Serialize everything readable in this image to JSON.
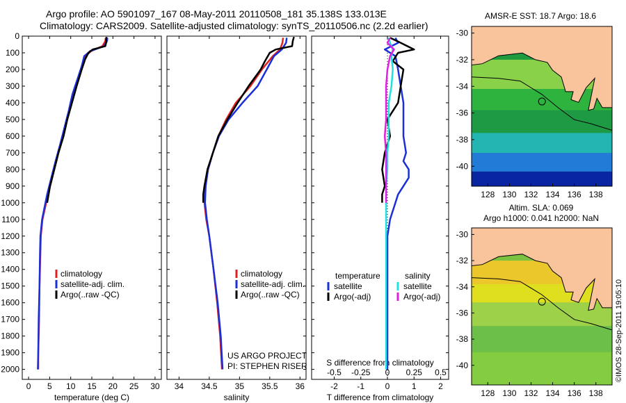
{
  "title": {
    "line1": "Argo profile: AO 5901097_167 08-May-2011 20110508_181 35.138S 133.013E",
    "line2": "Climatology: CARS2009. Satellite-adjusted climatology: synTS_20110506.nc (2.2d earlier)"
  },
  "credit": "©IMOS 28-Sep-2011 19:05:10",
  "project": {
    "line1": "US ARGO PROJECT",
    "line2": "PI: STEPHEN RISER"
  },
  "colors": {
    "climatology": "#e02020",
    "satellite": "#1a2fd8",
    "argo": "#000000",
    "sal_sat": "#20e0e0",
    "sal_argo": "#e020e0",
    "land": "#f9c49b",
    "coast": "#000000"
  },
  "chart_data": [
    {
      "type": "line",
      "id": "temperature",
      "xlabel": "temperature (deg C)",
      "xticks": [
        0,
        5,
        10,
        15,
        20,
        25,
        30
      ],
      "xlim": [
        -1.5,
        31.5
      ],
      "ylim": [
        0,
        2060
      ],
      "yticks": [
        0,
        100,
        200,
        300,
        400,
        500,
        600,
        700,
        800,
        900,
        1000,
        1100,
        1200,
        1300,
        1400,
        1500,
        1600,
        1700,
        1800,
        1900,
        2000
      ],
      "legend": [
        "climatology",
        "satellite-adj. clim.",
        "Argo(..raw -QC)"
      ],
      "series": [
        {
          "name": "climatology",
          "color": "climatology",
          "depth": [
            10,
            30,
            60,
            90,
            120,
            180,
            250,
            350,
            450,
            550,
            650,
            750,
            850,
            950,
            1100,
            1200,
            1300,
            1500,
            1700,
            1900,
            2000
          ],
          "values": [
            18.3,
            18.2,
            17.5,
            14.8,
            13.5,
            12.8,
            11.9,
            10.7,
            9.6,
            8.6,
            7.6,
            6.5,
            5.6,
            4.6,
            3.3,
            2.9,
            2.8,
            2.6,
            2.5,
            2.3,
            2.3
          ]
        },
        {
          "name": "satellite-adj. clim.",
          "color": "satellite",
          "depth": [
            10,
            30,
            60,
            90,
            120,
            180,
            250,
            350,
            450,
            550,
            650,
            750,
            850,
            950,
            1100,
            1200,
            1300,
            1500,
            1700,
            1900,
            2000
          ],
          "values": [
            18.7,
            18.6,
            17.9,
            14.6,
            13.2,
            12.6,
            11.7,
            10.4,
            9.5,
            8.5,
            7.5,
            6.4,
            5.4,
            4.4,
            3.2,
            2.8,
            2.7,
            2.6,
            2.4,
            2.3,
            2.2
          ]
        },
        {
          "name": "Argo(..raw -QC)",
          "color": "argo",
          "depth": [
            5,
            20,
            40,
            60,
            80,
            100,
            140,
            200,
            300,
            400,
            500,
            600,
            700,
            800,
            900,
            1000
          ],
          "values": [
            18.5,
            18.4,
            18.4,
            18.2,
            15.2,
            14.2,
            13.4,
            12.6,
            11.4,
            10.3,
            9.2,
            8.3,
            7.1,
            6.1,
            5.1,
            4.4
          ]
        }
      ]
    },
    {
      "type": "line",
      "id": "salinity",
      "xlabel": "salinity",
      "xticks": [
        34,
        34.5,
        35,
        35.5,
        36
      ],
      "xlim": [
        33.8,
        36.1
      ],
      "ylim": [
        0,
        2060
      ],
      "legend": [
        "climatology",
        "satellite-adj. clim.",
        "Argo(..raw -QC)"
      ],
      "series": [
        {
          "name": "climatology",
          "color": "climatology",
          "depth": [
            10,
            40,
            80,
            120,
            200,
            300,
            400,
            500,
            600,
            700,
            800,
            900,
            1000,
            1100,
            1200,
            1400,
            1600,
            1800,
            2000
          ],
          "values": [
            35.72,
            35.71,
            35.67,
            35.55,
            35.37,
            35.18,
            34.94,
            34.78,
            34.65,
            34.56,
            34.48,
            34.43,
            34.42,
            34.45,
            34.5,
            34.57,
            34.63,
            34.68,
            34.71
          ]
        },
        {
          "name": "satellite-adj. clim.",
          "color": "satellite",
          "depth": [
            10,
            40,
            80,
            120,
            200,
            300,
            400,
            500,
            600,
            700,
            800,
            900,
            1000,
            1100,
            1200,
            1400,
            1600,
            1800,
            2000
          ],
          "values": [
            35.78,
            35.77,
            35.7,
            35.57,
            35.45,
            35.3,
            35.05,
            34.82,
            34.66,
            34.56,
            34.48,
            34.44,
            34.43,
            34.46,
            34.5,
            34.57,
            34.64,
            34.69,
            34.72
          ]
        },
        {
          "name": "Argo(..raw -QC)",
          "color": "argo",
          "depth": [
            5,
            30,
            60,
            80,
            100,
            150,
            200,
            300,
            400,
            500,
            600,
            700,
            800,
            900,
            950,
            1000
          ],
          "values": [
            35.9,
            35.88,
            35.87,
            35.6,
            35.5,
            35.42,
            35.35,
            35.15,
            34.97,
            34.8,
            34.65,
            34.56,
            34.47,
            34.42,
            34.4,
            34.4
          ]
        }
      ]
    },
    {
      "type": "line",
      "id": "difference",
      "xlabel": "T difference from climatology",
      "xlabel_top": "S difference from climatology",
      "xticks": [
        -2,
        -1,
        0,
        1,
        2
      ],
      "xticks_top": [
        "-0.5",
        "-0.25",
        "0",
        "0.25",
        "0.5"
      ],
      "xlim": [
        -2.85,
        2.3
      ],
      "ylim": [
        0,
        2060
      ],
      "legend_headers": [
        "temperature",
        "salinity"
      ],
      "legend": [
        "satellite",
        "Argo(-adj)",
        "satellite",
        "Argo(-adj)"
      ],
      "series": [
        {
          "name": "T satellite",
          "color": "satellite",
          "depth": [
            10,
            40,
            80,
            120,
            200,
            300,
            400,
            500,
            600,
            700,
            750,
            800,
            850,
            900,
            950,
            1000,
            1100,
            1200,
            1500,
            2000
          ],
          "values": [
            0.3,
            0.4,
            -0.1,
            0.3,
            0.4,
            0.5,
            0.6,
            0.6,
            0.6,
            0.7,
            0.6,
            0.8,
            0.8,
            0.6,
            0.4,
            0.3,
            0.1,
            0.0,
            0.0,
            0.0
          ]
        },
        {
          "name": "T Argo(-adj)",
          "color": "argo",
          "depth": [
            10,
            40,
            80,
            100,
            150,
            200,
            300,
            400,
            500,
            600,
            700,
            800,
            900,
            950,
            1000
          ],
          "values": [
            0.1,
            0.5,
            1.0,
            0.4,
            0.2,
            0.6,
            0.5,
            0.4,
            0.0,
            0.1,
            -0.1,
            -0.2,
            -0.1,
            -0.2,
            -0.2
          ]
        },
        {
          "name": "S satellite",
          "color": "sal_sat",
          "depth": [
            10,
            40,
            80,
            120,
            200,
            300,
            400,
            500,
            600,
            700,
            800,
            900,
            1000,
            1200,
            1500,
            1800,
            2000
          ],
          "values": [
            0.05,
            0.1,
            0.2,
            0.15,
            0.2,
            0.15,
            0.05,
            0.05,
            0.05,
            0.0,
            0.0,
            -0.05,
            -0.05,
            -0.05,
            -0.05,
            -0.05,
            -0.05
          ]
        },
        {
          "name": "S Argo(-adj)",
          "color": "sal_argo",
          "depth": [
            10,
            40,
            80,
            120,
            200,
            300,
            400,
            500,
            600,
            700,
            800,
            900,
            1000
          ],
          "values": [
            0.1,
            0.0,
            0.25,
            0.1,
            0.0,
            -0.05,
            -0.05,
            -0.05,
            -0.1,
            -0.05,
            -0.05,
            -0.05,
            -0.05
          ]
        }
      ]
    },
    {
      "type": "heatmap",
      "id": "sst-map",
      "title": "AMSR-E SST: 18.7 Argo: 18.6",
      "xticks": [
        128,
        130,
        132,
        134,
        136,
        138
      ],
      "yticks": [
        -30,
        -32,
        -34,
        -36,
        -38,
        -40
      ],
      "xlim": [
        126.5,
        139.5
      ],
      "ylim": [
        -41.5,
        -29.5
      ],
      "argo_position": [
        133.013,
        -35.138
      ]
    },
    {
      "type": "heatmap",
      "id": "sla-map",
      "title_line1": "Altim. SLA: 0.069",
      "title_line2": "Argo h1000: 0.041 h2000: NaN",
      "xticks": [
        128,
        130,
        132,
        134,
        136,
        138
      ],
      "yticks": [
        -30,
        -32,
        -34,
        -36,
        -38,
        -40
      ],
      "xlim": [
        126.5,
        139.5
      ],
      "ylim": [
        -41.5,
        -29.5
      ],
      "argo_position": [
        133.013,
        -35.138
      ]
    }
  ]
}
